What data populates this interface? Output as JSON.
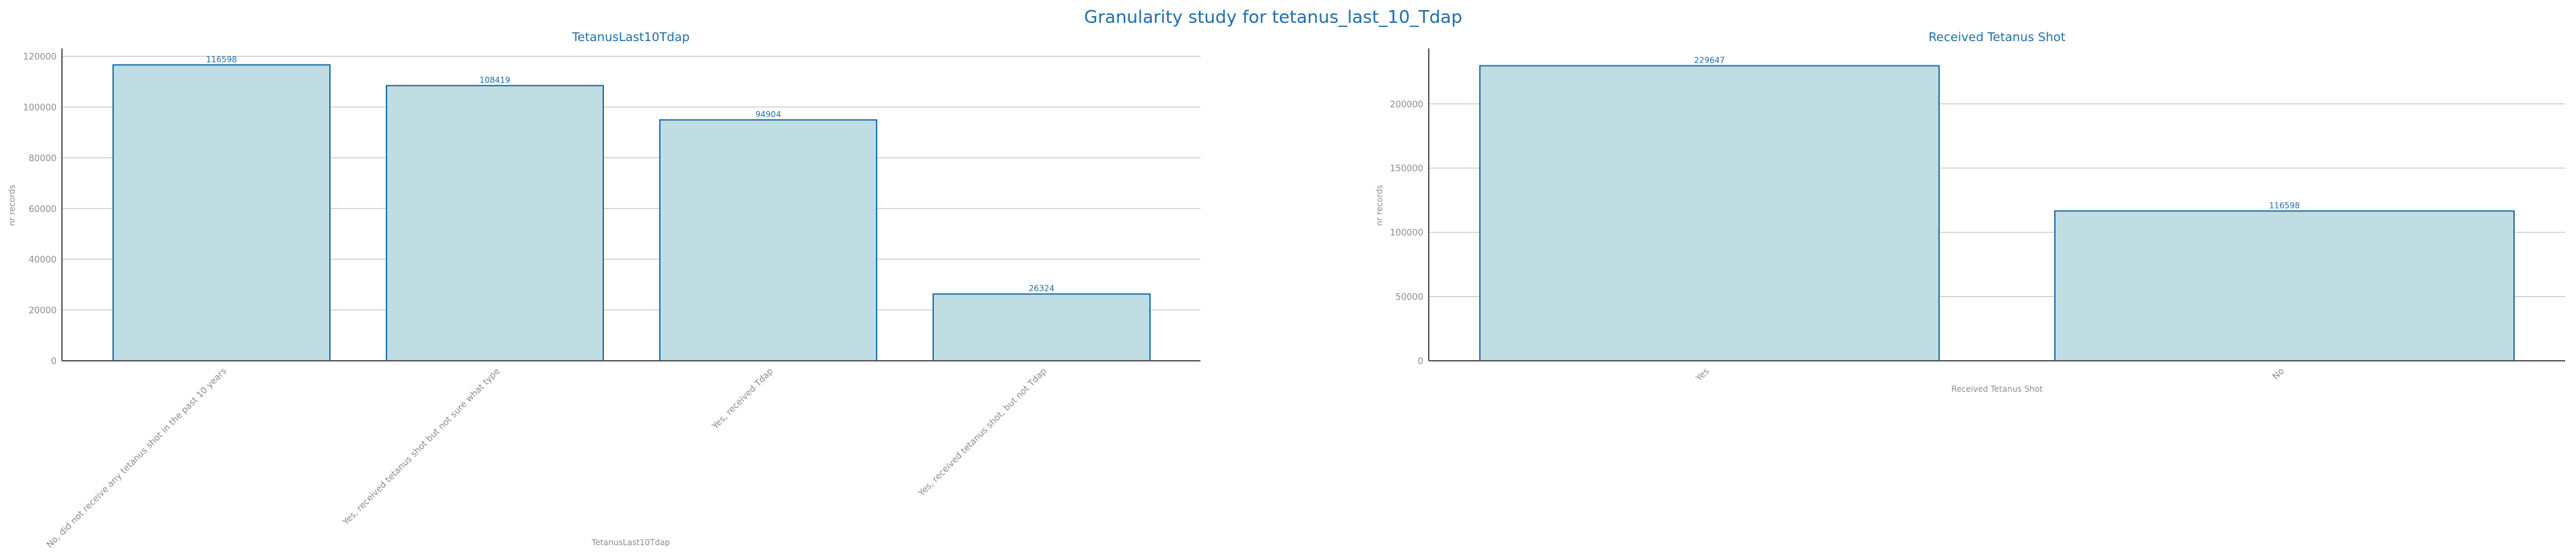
{
  "suptitle": "Granularity study for tetanus_last_10_Tdap",
  "colors": {
    "bar_fill": "#bfdde2",
    "bar_edge": "#1f6fa8",
    "title": "#1f6fa8",
    "grid": "#b8b8b8",
    "text": "#8c8c8c"
  },
  "chart_data": [
    {
      "type": "bar",
      "title": "TetanusLast10Tdap",
      "xlabel": "TetanusLast10Tdap",
      "ylabel": "nr records",
      "categories": [
        "No, did not receive any tetanus shot in the past 10 years",
        "Yes, received tetanus shot but not sure what type",
        "Yes, received Tdap",
        "Yes, received tetanus shot, but not Tdap"
      ],
      "values": [
        116598,
        108419,
        94904,
        26324
      ],
      "ylim": [
        0,
        122000
      ],
      "yticks": [
        0,
        20000,
        40000,
        60000,
        80000,
        100000,
        120000
      ],
      "grid": true,
      "rotated_labels": true
    },
    {
      "type": "bar",
      "title": "Received Tetanus Shot",
      "xlabel": "Received Tetanus Shot",
      "ylabel": "nr records",
      "categories": [
        "Yes",
        "No"
      ],
      "values": [
        229647,
        116598
      ],
      "ylim": [
        0,
        241000
      ],
      "yticks": [
        0,
        50000,
        100000,
        150000,
        200000
      ],
      "grid": true,
      "rotated_labels": true
    }
  ]
}
